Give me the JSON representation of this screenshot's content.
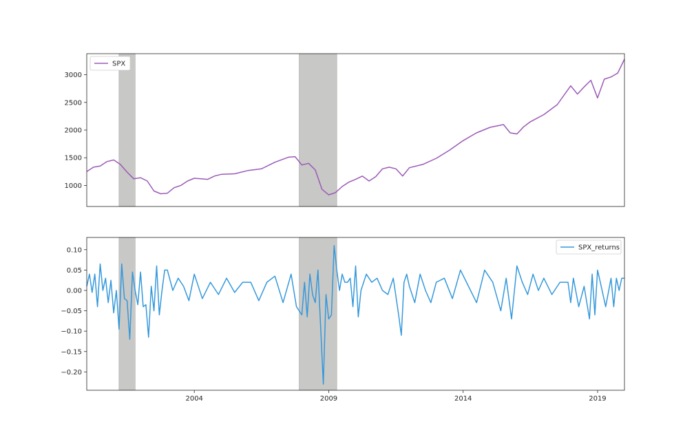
{
  "colors": {
    "spx": "#9b59b6",
    "spx_returns": "#3498db",
    "recession": "#c8c8c6",
    "axes": "#262626"
  },
  "chart_data": [
    {
      "type": "line",
      "x_range": [
        2000.0,
        2020.0
      ],
      "ylim": [
        620,
        3380
      ],
      "yticks": [
        1000,
        1500,
        2000,
        2500,
        3000
      ],
      "ytick_labels": [
        "1000",
        "1500",
        "2000",
        "2500",
        "3000"
      ],
      "legend": "top-left",
      "grid": false,
      "shaded_periods": [
        [
          2001.2,
          2001.8
        ],
        [
          2007.9,
          2009.3
        ]
      ],
      "series": [
        {
          "name": "SPX",
          "x": [
            2000.0,
            2000.25,
            2000.5,
            2000.75,
            2001.0,
            2001.25,
            2001.5,
            2001.75,
            2002.0,
            2002.25,
            2002.5,
            2002.75,
            2003.0,
            2003.25,
            2003.5,
            2003.75,
            2004.0,
            2004.25,
            2004.5,
            2004.75,
            2005.0,
            2005.5,
            2006.0,
            2006.5,
            2007.0,
            2007.5,
            2007.75,
            2008.0,
            2008.25,
            2008.5,
            2008.75,
            2009.0,
            2009.25,
            2009.5,
            2009.75,
            2010.0,
            2010.25,
            2010.5,
            2010.75,
            2011.0,
            2011.25,
            2011.5,
            2011.75,
            2012.0,
            2012.5,
            2013.0,
            2013.5,
            2014.0,
            2014.5,
            2015.0,
            2015.5,
            2015.75,
            2016.0,
            2016.25,
            2016.5,
            2017.0,
            2017.5,
            2018.0,
            2018.25,
            2018.5,
            2018.75,
            2019.0,
            2019.25,
            2019.5,
            2019.75,
            2020.0
          ],
          "y": [
            1250,
            1330,
            1350,
            1430,
            1460,
            1380,
            1240,
            1120,
            1140,
            1080,
            900,
            850,
            860,
            960,
            1000,
            1080,
            1130,
            1120,
            1110,
            1170,
            1200,
            1210,
            1270,
            1300,
            1420,
            1510,
            1520,
            1370,
            1400,
            1280,
            930,
            830,
            870,
            980,
            1060,
            1110,
            1170,
            1080,
            1160,
            1300,
            1330,
            1300,
            1170,
            1320,
            1380,
            1490,
            1640,
            1810,
            1950,
            2050,
            2100,
            1950,
            1930,
            2060,
            2150,
            2280,
            2460,
            2800,
            2650,
            2780,
            2900,
            2580,
            2920,
            2960,
            3030,
            3280
          ]
        }
      ]
    },
    {
      "type": "line",
      "x_range": [
        2000.0,
        2020.0
      ],
      "ylim": [
        -0.245,
        0.13
      ],
      "yticks": [
        0.1,
        0.05,
        0.0,
        -0.05,
        -0.1,
        -0.15,
        -0.2
      ],
      "ytick_labels": [
        "0.10",
        "0.05",
        "0.00",
        "−0.05",
        "−0.10",
        "−0.15",
        "−0.20"
      ],
      "xticks": [
        2004,
        2009,
        2014,
        2019
      ],
      "xtick_labels": [
        "2004",
        "2009",
        "2014",
        "2019"
      ],
      "legend": "top-right",
      "grid": false,
      "shaded_periods": [
        [
          2001.2,
          2001.8
        ],
        [
          2007.9,
          2009.3
        ]
      ],
      "series": [
        {
          "name": "SPX_returns",
          "x": [
            2000.0,
            2000.1,
            2000.2,
            2000.3,
            2000.4,
            2000.5,
            2000.6,
            2000.7,
            2000.8,
            2000.9,
            2001.0,
            2001.1,
            2001.2,
            2001.3,
            2001.4,
            2001.5,
            2001.6,
            2001.7,
            2001.8,
            2001.9,
            2002.0,
            2002.1,
            2002.2,
            2002.3,
            2002.4,
            2002.5,
            2002.6,
            2002.7,
            2002.8,
            2002.9,
            2003.0,
            2003.2,
            2003.4,
            2003.6,
            2003.8,
            2004.0,
            2004.3,
            2004.6,
            2004.9,
            2005.2,
            2005.5,
            2005.8,
            2006.1,
            2006.4,
            2006.7,
            2007.0,
            2007.3,
            2007.6,
            2007.8,
            2008.0,
            2008.1,
            2008.2,
            2008.3,
            2008.4,
            2008.5,
            2008.6,
            2008.7,
            2008.8,
            2008.9,
            2009.0,
            2009.1,
            2009.2,
            2009.3,
            2009.4,
            2009.5,
            2009.6,
            2009.7,
            2009.8,
            2009.9,
            2010.0,
            2010.1,
            2010.2,
            2010.3,
            2010.4,
            2010.6,
            2010.8,
            2011.0,
            2011.2,
            2011.4,
            2011.6,
            2011.7,
            2011.8,
            2011.9,
            2012.0,
            2012.2,
            2012.4,
            2012.6,
            2012.8,
            2013.0,
            2013.3,
            2013.6,
            2013.9,
            2014.2,
            2014.5,
            2014.8,
            2015.1,
            2015.4,
            2015.6,
            2015.8,
            2016.0,
            2016.2,
            2016.4,
            2016.6,
            2016.8,
            2017.0,
            2017.3,
            2017.6,
            2017.9,
            2018.0,
            2018.1,
            2018.3,
            2018.5,
            2018.7,
            2018.8,
            2018.9,
            2019.0,
            2019.1,
            2019.3,
            2019.5,
            2019.6,
            2019.7,
            2019.8,
            2019.9,
            2020.0
          ],
          "y": [
            0.01,
            0.04,
            -0.005,
            0.04,
            -0.04,
            0.065,
            0.0,
            0.03,
            -0.03,
            0.025,
            -0.055,
            0.0,
            -0.095,
            0.065,
            -0.02,
            -0.025,
            -0.12,
            0.045,
            0.0,
            -0.035,
            0.045,
            -0.04,
            -0.035,
            -0.115,
            0.01,
            -0.05,
            0.06,
            -0.06,
            0.0,
            0.05,
            0.05,
            0.0,
            0.03,
            0.01,
            -0.025,
            0.04,
            -0.02,
            0.02,
            -0.01,
            0.03,
            -0.005,
            0.02,
            0.02,
            -0.025,
            0.02,
            0.035,
            -0.03,
            0.04,
            -0.04,
            -0.06,
            0.02,
            -0.065,
            0.04,
            -0.01,
            -0.03,
            0.05,
            -0.09,
            -0.23,
            -0.01,
            -0.07,
            -0.06,
            0.11,
            0.05,
            0.0,
            0.04,
            0.02,
            0.02,
            0.03,
            -0.04,
            0.06,
            -0.065,
            0.0,
            0.02,
            0.04,
            0.02,
            0.03,
            0.0,
            -0.01,
            0.03,
            -0.06,
            -0.11,
            0.02,
            0.04,
            0.01,
            -0.03,
            0.04,
            0.0,
            -0.03,
            0.02,
            0.03,
            -0.02,
            0.05,
            0.01,
            -0.03,
            0.05,
            0.02,
            -0.05,
            0.03,
            -0.07,
            0.06,
            0.02,
            -0.01,
            0.04,
            0.0,
            0.03,
            -0.01,
            0.02,
            0.02,
            -0.03,
            0.03,
            -0.04,
            0.01,
            -0.07,
            0.04,
            -0.06,
            0.05,
            0.02,
            -0.04,
            0.03,
            -0.04,
            0.03,
            0.0,
            0.03,
            0.03
          ]
        }
      ]
    }
  ]
}
